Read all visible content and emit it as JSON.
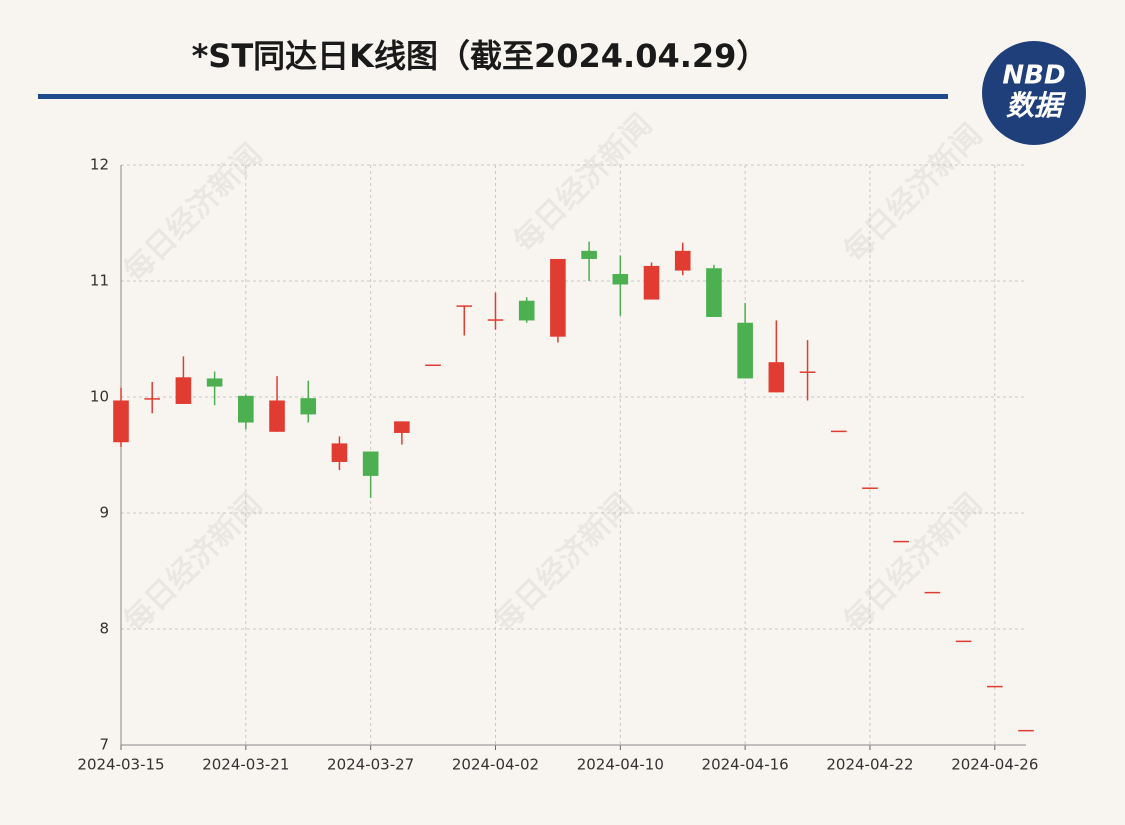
{
  "chart_data": {
    "type": "candlestick",
    "title": "*ST同达日K线图（截至2024.04.29）",
    "logo": {
      "brand": "NBD",
      "sub": "数据"
    },
    "watermark": "每日经济新闻",
    "categories": [
      "2024-03-15",
      null,
      null,
      null,
      "2024-03-21",
      null,
      null,
      null,
      "2024-03-27",
      null,
      null,
      null,
      "2024-04-02",
      null,
      null,
      null,
      "2024-04-10",
      null,
      null,
      null,
      "2024-04-16",
      null,
      null,
      null,
      "2024-04-22",
      null,
      null,
      null,
      "2024-04-26",
      null
    ],
    "open": [
      9.61,
      9.98,
      9.94,
      10.16,
      10.01,
      9.7,
      9.99,
      9.44,
      9.53,
      9.69,
      10.28,
      10.79,
      10.66,
      10.83,
      10.52,
      11.26,
      11.06,
      10.84,
      11.09,
      11.11,
      10.64,
      10.04,
      10.21,
      9.71,
      9.22,
      8.76,
      8.32,
      7.9,
      7.51,
      7.13
    ],
    "high": [
      10.08,
      10.13,
      10.35,
      10.22,
      10.02,
      10.18,
      10.14,
      9.66,
      9.53,
      9.79,
      10.28,
      10.79,
      10.9,
      10.86,
      11.19,
      11.34,
      11.22,
      11.16,
      11.33,
      11.14,
      10.81,
      10.66,
      10.49,
      9.71,
      9.22,
      8.76,
      8.32,
      7.9,
      7.51,
      7.13
    ],
    "low": [
      9.57,
      9.86,
      9.94,
      9.93,
      9.72,
      9.7,
      9.78,
      9.37,
      9.13,
      9.59,
      10.28,
      10.53,
      10.58,
      10.64,
      10.47,
      11.0,
      10.7,
      10.84,
      11.05,
      10.69,
      10.16,
      10.04,
      9.97,
      9.71,
      9.22,
      8.76,
      8.32,
      7.9,
      7.51,
      7.13
    ],
    "close": [
      9.97,
      9.99,
      10.17,
      10.09,
      9.78,
      9.97,
      9.85,
      9.6,
      9.32,
      9.79,
      10.28,
      10.79,
      10.67,
      10.66,
      11.19,
      11.19,
      10.97,
      11.13,
      11.26,
      10.69,
      10.16,
      10.3,
      10.22,
      9.71,
      9.22,
      8.76,
      8.32,
      7.9,
      7.51,
      7.13
    ],
    "up_color": "#e03c31",
    "down_color": "#4caf50",
    "ylim": [
      7,
      12
    ],
    "yticks": [
      7,
      8,
      9,
      10,
      11,
      12
    ],
    "grid": true
  }
}
